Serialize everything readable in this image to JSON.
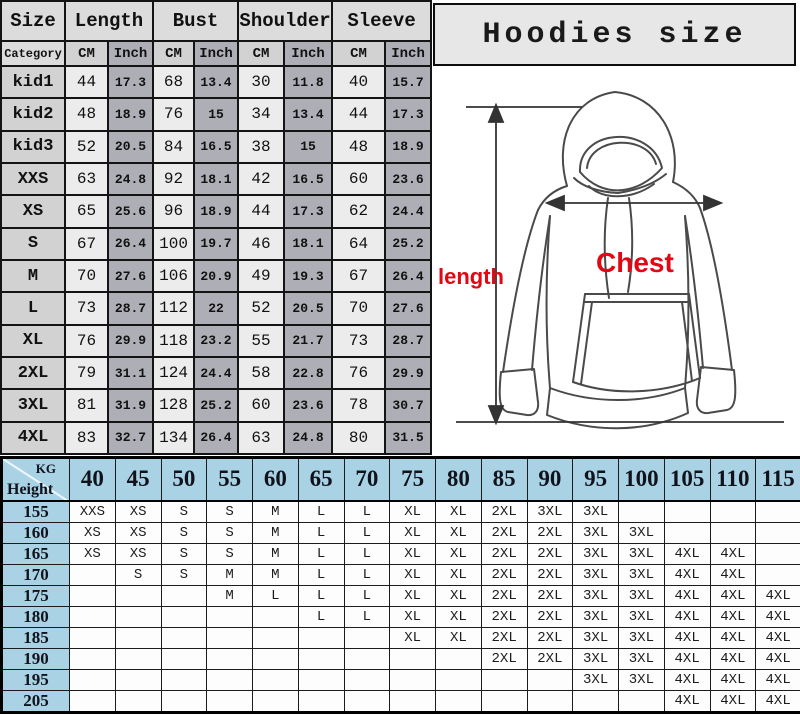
{
  "title": "Hoodies size",
  "size_table": {
    "corner": "Size",
    "category": "Category",
    "groups": [
      "Length",
      "Bust",
      "Shoulder",
      "Sleeve"
    ],
    "units": [
      "CM",
      "Inch"
    ],
    "rows": [
      {
        "label": "kid1",
        "values": [
          "44",
          "17.3",
          "68",
          "13.4",
          "30",
          "11.8",
          "40",
          "15.7"
        ]
      },
      {
        "label": "kid2",
        "values": [
          "48",
          "18.9",
          "76",
          "15",
          "34",
          "13.4",
          "44",
          "17.3"
        ]
      },
      {
        "label": "kid3",
        "values": [
          "52",
          "20.5",
          "84",
          "16.5",
          "38",
          "15",
          "48",
          "18.9"
        ]
      },
      {
        "label": "XXS",
        "values": [
          "63",
          "24.8",
          "92",
          "18.1",
          "42",
          "16.5",
          "60",
          "23.6"
        ]
      },
      {
        "label": "XS",
        "values": [
          "65",
          "25.6",
          "96",
          "18.9",
          "44",
          "17.3",
          "62",
          "24.4"
        ]
      },
      {
        "label": "S",
        "values": [
          "67",
          "26.4",
          "100",
          "19.7",
          "46",
          "18.1",
          "64",
          "25.2"
        ]
      },
      {
        "label": "M",
        "values": [
          "70",
          "27.6",
          "106",
          "20.9",
          "49",
          "19.3",
          "67",
          "26.4"
        ]
      },
      {
        "label": "L",
        "values": [
          "73",
          "28.7",
          "112",
          "22",
          "52",
          "20.5",
          "70",
          "27.6"
        ]
      },
      {
        "label": "XL",
        "values": [
          "76",
          "29.9",
          "118",
          "23.2",
          "55",
          "21.7",
          "73",
          "28.7"
        ]
      },
      {
        "label": "2XL",
        "values": [
          "79",
          "31.1",
          "124",
          "24.4",
          "58",
          "22.8",
          "76",
          "29.9"
        ]
      },
      {
        "label": "3XL",
        "values": [
          "81",
          "31.9",
          "128",
          "25.2",
          "60",
          "23.6",
          "78",
          "30.7"
        ]
      },
      {
        "label": "4XL",
        "values": [
          "83",
          "32.7",
          "134",
          "26.4",
          "63",
          "24.8",
          "80",
          "31.5"
        ]
      }
    ]
  },
  "diagram": {
    "length_label": "length",
    "chest_label": "Chest"
  },
  "matrix": {
    "corner_kg": "KG",
    "corner_height": "Height",
    "weights": [
      "40",
      "45",
      "50",
      "55",
      "60",
      "65",
      "70",
      "75",
      "80",
      "85",
      "90",
      "95",
      "100",
      "105",
      "110",
      "115"
    ],
    "rows": [
      {
        "height": "155",
        "cells": [
          "XXS",
          "XS",
          "S",
          "S",
          "M",
          "L",
          "L",
          "XL",
          "XL",
          "2XL",
          "3XL",
          "3XL",
          "",
          "",
          "",
          ""
        ]
      },
      {
        "height": "160",
        "cells": [
          "XS",
          "XS",
          "S",
          "S",
          "M",
          "L",
          "L",
          "XL",
          "XL",
          "2XL",
          "2XL",
          "3XL",
          "3XL",
          "",
          "",
          ""
        ]
      },
      {
        "height": "165",
        "cells": [
          "XS",
          "XS",
          "S",
          "S",
          "M",
          "L",
          "L",
          "XL",
          "XL",
          "2XL",
          "2XL",
          "3XL",
          "3XL",
          "4XL",
          "4XL",
          ""
        ]
      },
      {
        "height": "170",
        "cells": [
          "",
          "S",
          "S",
          "M",
          "M",
          "L",
          "L",
          "XL",
          "XL",
          "2XL",
          "2XL",
          "3XL",
          "3XL",
          "4XL",
          "4XL",
          ""
        ]
      },
      {
        "height": "175",
        "cells": [
          "",
          "",
          "",
          "M",
          "L",
          "L",
          "L",
          "XL",
          "XL",
          "2XL",
          "2XL",
          "3XL",
          "3XL",
          "4XL",
          "4XL",
          "4XL"
        ]
      },
      {
        "height": "180",
        "cells": [
          "",
          "",
          "",
          "",
          "",
          "L",
          "L",
          "XL",
          "XL",
          "2XL",
          "2XL",
          "3XL",
          "3XL",
          "4XL",
          "4XL",
          "4XL"
        ]
      },
      {
        "height": "185",
        "cells": [
          "",
          "",
          "",
          "",
          "",
          "",
          "",
          "XL",
          "XL",
          "2XL",
          "2XL",
          "3XL",
          "3XL",
          "4XL",
          "4XL",
          "4XL"
        ]
      },
      {
        "height": "190",
        "cells": [
          "",
          "",
          "",
          "",
          "",
          "",
          "",
          "",
          "",
          "2XL",
          "2XL",
          "3XL",
          "3XL",
          "4XL",
          "4XL",
          "4XL"
        ]
      },
      {
        "height": "195",
        "cells": [
          "",
          "",
          "",
          "",
          "",
          "",
          "",
          "",
          "",
          "",
          "",
          "3XL",
          "3XL",
          "4XL",
          "4XL",
          "4XL"
        ]
      },
      {
        "height": "205",
        "cells": [
          "",
          "",
          "",
          "",
          "",
          "",
          "",
          "",
          "",
          "",
          "",
          "",
          "",
          "4XL",
          "4XL",
          "4XL"
        ]
      }
    ]
  },
  "colors": {
    "blue_header": "#a9d3e5",
    "gray_header": "#dcdcdc",
    "gray_label": "#d2d2d2",
    "gray_dark": "#aeaeb6",
    "gray_light": "#ececec",
    "red_label": "#e30613",
    "grid": "#141414",
    "title_bg": "#e7e7e7"
  }
}
